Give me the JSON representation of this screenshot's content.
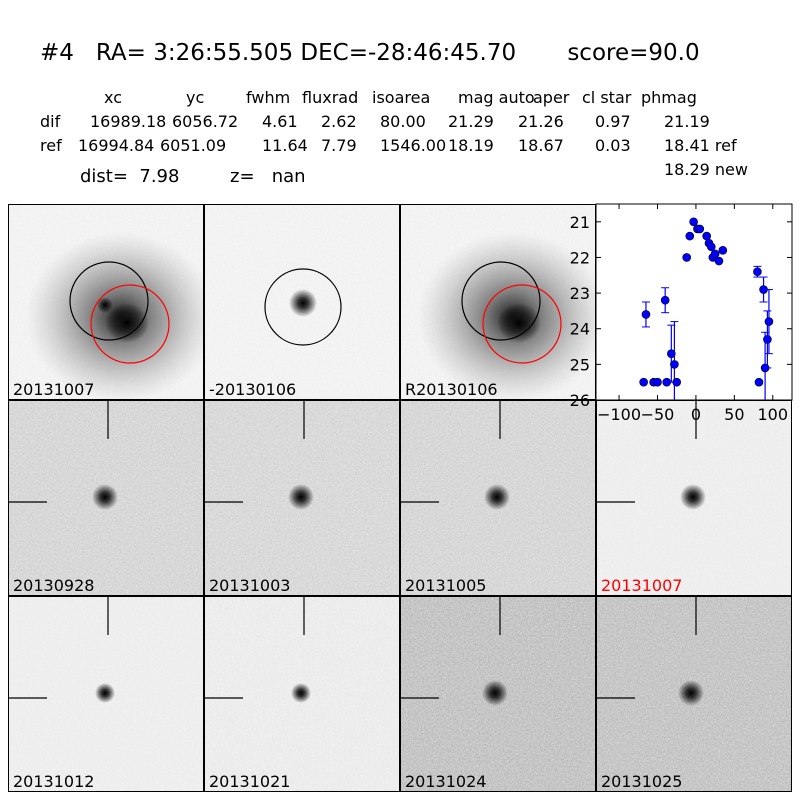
{
  "header": {
    "title": "#4   RA= 3:26:55.505 DEC=-28:46:45.70       score=90.0",
    "columns": [
      "xc",
      "yc",
      "fwhm",
      "fluxrad",
      "isoarea",
      "mag auto",
      "aper",
      "cl star",
      "phmag"
    ],
    "dif": {
      "label": "dif",
      "values": [
        "16989.18",
        "6056.72",
        "4.61",
        "2.62",
        "80.00",
        "21.29",
        "21.26",
        "0.97",
        "21.19"
      ]
    },
    "ref": {
      "label": "ref",
      "values": [
        "16994.84",
        "6051.09",
        "11.64",
        "7.79",
        "1546.00",
        "18.19",
        "18.67",
        "0.03",
        "18.41 ref"
      ]
    },
    "new_mag": "18.29 new",
    "dist": "dist=  7.98",
    "z": "z=   nan"
  },
  "top_panels": [
    {
      "label": "20131007",
      "galaxy_strength": 0.95,
      "highlight": false
    },
    {
      "label": "-20130106",
      "galaxy_strength": 0.9,
      "highlight": false
    },
    {
      "label": "R20130106",
      "galaxy_strength": 0.95,
      "highlight": false
    }
  ],
  "stamps": [
    {
      "label": "20130928",
      "highlight": false,
      "noise_level": 0.25
    },
    {
      "label": "20131003",
      "highlight": false,
      "noise_level": 0.22
    },
    {
      "label": "20131005",
      "highlight": false,
      "noise_level": 0.25
    },
    {
      "label": "20131007",
      "highlight": true,
      "noise_level": 0.05
    },
    {
      "label": "20131012",
      "highlight": false,
      "noise_level": 0.06
    },
    {
      "label": "20131021",
      "highlight": false,
      "noise_level": 0.08
    },
    {
      "label": "20131024",
      "highlight": false,
      "noise_level": 0.45
    },
    {
      "label": "20131025",
      "highlight": false,
      "noise_level": 0.42
    }
  ],
  "colors": {
    "label_highlight": "#ff0000",
    "points": "#0000ff",
    "ref_circle": "#ff0000",
    "dif_circle": "#000000"
  },
  "chart_data": {
    "type": "scatter",
    "title": "",
    "xlabel": "",
    "ylabel": "",
    "xlim": [
      -130,
      125
    ],
    "ylim": [
      26,
      20.5
    ],
    "xticks": [
      -100,
      -50,
      0,
      50,
      100
    ],
    "yticks": [
      21,
      22,
      23,
      24,
      25,
      26
    ],
    "grid": false,
    "points": [
      {
        "x": -68,
        "y": 25.5,
        "err": 0.0
      },
      {
        "x": -65,
        "y": 23.6,
        "err": 0.35
      },
      {
        "x": -55,
        "y": 25.5,
        "err": 0.0
      },
      {
        "x": -50,
        "y": 25.5,
        "err": 0.0
      },
      {
        "x": -40,
        "y": 23.2,
        "err": 0.35
      },
      {
        "x": -38,
        "y": 25.5,
        "err": 0.0
      },
      {
        "x": -32,
        "y": 24.7,
        "err": 0.8
      },
      {
        "x": -28,
        "y": 25.0,
        "err": 1.2
      },
      {
        "x": -25,
        "y": 25.5,
        "err": 0.0
      },
      {
        "x": -12,
        "y": 22.0,
        "err": 0.0
      },
      {
        "x": -8,
        "y": 21.4,
        "err": 0.0
      },
      {
        "x": -3,
        "y": 21.0,
        "err": 0.0
      },
      {
        "x": 2,
        "y": 21.2,
        "err": 0.0
      },
      {
        "x": 5,
        "y": 21.2,
        "err": 0.0
      },
      {
        "x": 14,
        "y": 21.4,
        "err": 0.0
      },
      {
        "x": 17,
        "y": 21.6,
        "err": 0.0
      },
      {
        "x": 20,
        "y": 21.7,
        "err": 0.0
      },
      {
        "x": 22,
        "y": 22.0,
        "err": 0.0
      },
      {
        "x": 25,
        "y": 21.9,
        "err": 0.0
      },
      {
        "x": 30,
        "y": 22.1,
        "err": 0.0
      },
      {
        "x": 35,
        "y": 21.8,
        "err": 0.0
      },
      {
        "x": 80,
        "y": 22.4,
        "err": 0.15
      },
      {
        "x": 82,
        "y": 25.5,
        "err": 0.0
      },
      {
        "x": 88,
        "y": 22.9,
        "err": 0.35
      },
      {
        "x": 90,
        "y": 25.1,
        "err": 1.0
      },
      {
        "x": 93,
        "y": 24.3,
        "err": 0.8
      },
      {
        "x": 95,
        "y": 23.8,
        "err": 0.9
      }
    ]
  }
}
